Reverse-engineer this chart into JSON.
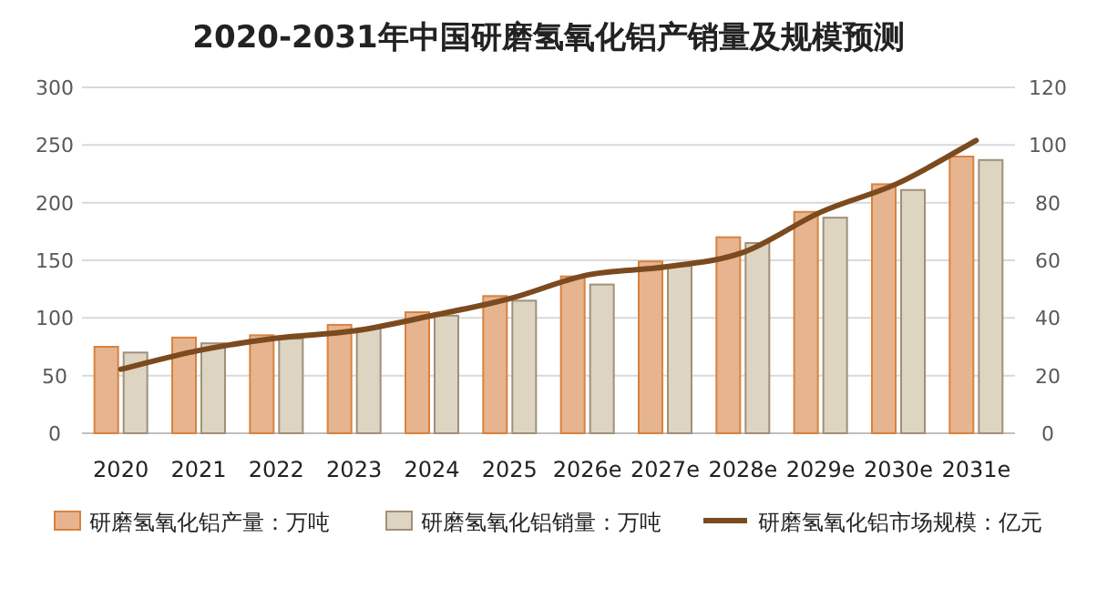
{
  "chart_data": {
    "type": "bar",
    "title": "2020-2031年中国研磨氢氧化铝产销量及规模预测",
    "categories": [
      "2020",
      "2021",
      "2022",
      "2023",
      "2024",
      "2025",
      "2026e",
      "2027e",
      "2028e",
      "2029e",
      "2030e",
      "2031e"
    ],
    "series": [
      {
        "name": "研磨氢氧化铝产量：万吨",
        "color": "#e6b58f",
        "values": [
          75,
          83,
          85,
          94,
          105,
          119,
          136,
          149,
          170,
          192,
          216,
          240
        ]
      },
      {
        "name": "研磨氢氧化铝销量：万吨",
        "color": "#ddd5c2",
        "values": [
          70,
          78,
          82,
          91,
          102,
          115,
          129,
          145,
          165,
          187,
          211,
          237
        ]
      },
      {
        "name": "研磨氢氧化铝市场规模：亿元",
        "type": "line",
        "axis": "y2",
        "color": "#7b4a1e",
        "values": [
          22.2,
          28.7,
          33,
          35.5,
          40.8,
          46.7,
          54.9,
          57.7,
          62.7,
          76.7,
          86.8,
          101.6
        ]
      }
    ],
    "ylim": [
      0,
      300
    ],
    "yticks": [
      0,
      50,
      100,
      150,
      200,
      250,
      300
    ],
    "y2lim": [
      0,
      120
    ],
    "y2ticks": [
      0,
      20,
      40,
      60,
      80,
      100,
      120
    ],
    "grid": "y",
    "legend": "bottom"
  }
}
